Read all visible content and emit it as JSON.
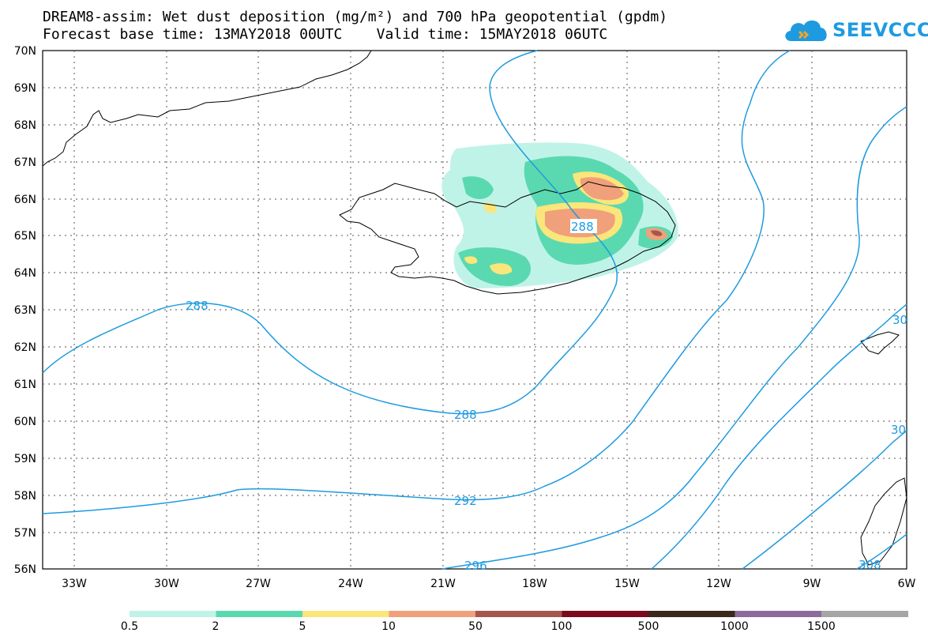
{
  "title": {
    "line1": "DREAM8-assim: Wet dust deposition (mg/m²) and 700 hPa geopotential (gpdm)",
    "line2": "Forecast base time: 13MAY2018 00UTC    Valid time: 15MAY2018 06UTC"
  },
  "logo": {
    "text": "SEEVCCC",
    "icon": "cloud-icon"
  },
  "map": {
    "lat_labels": [
      "70N",
      "69N",
      "68N",
      "67N",
      "66N",
      "65N",
      "64N",
      "63N",
      "62N",
      "61N",
      "60N",
      "59N",
      "58N",
      "57N",
      "56N"
    ],
    "lon_labels": [
      "33W",
      "30W",
      "27W",
      "24W",
      "21W",
      "18W",
      "15W",
      "12W",
      "9W",
      "6W"
    ],
    "gridlines": true,
    "contour_color": "#1e9be0",
    "contour_labels": [
      "288",
      "288",
      "288",
      "292",
      "296",
      "30",
      "30",
      "308"
    ]
  },
  "colorbar": {
    "colors": [
      "#c0f3e8",
      "#5ad9b0",
      "#fae67a",
      "#f0a07a",
      "#a5574e",
      "#7a0a1c",
      "#3b281c",
      "#8e6a9c",
      "#a6a6a6"
    ],
    "labels": [
      "0.5",
      "2",
      "5",
      "10",
      "50",
      "100",
      "500",
      "1000",
      "1500"
    ]
  }
}
